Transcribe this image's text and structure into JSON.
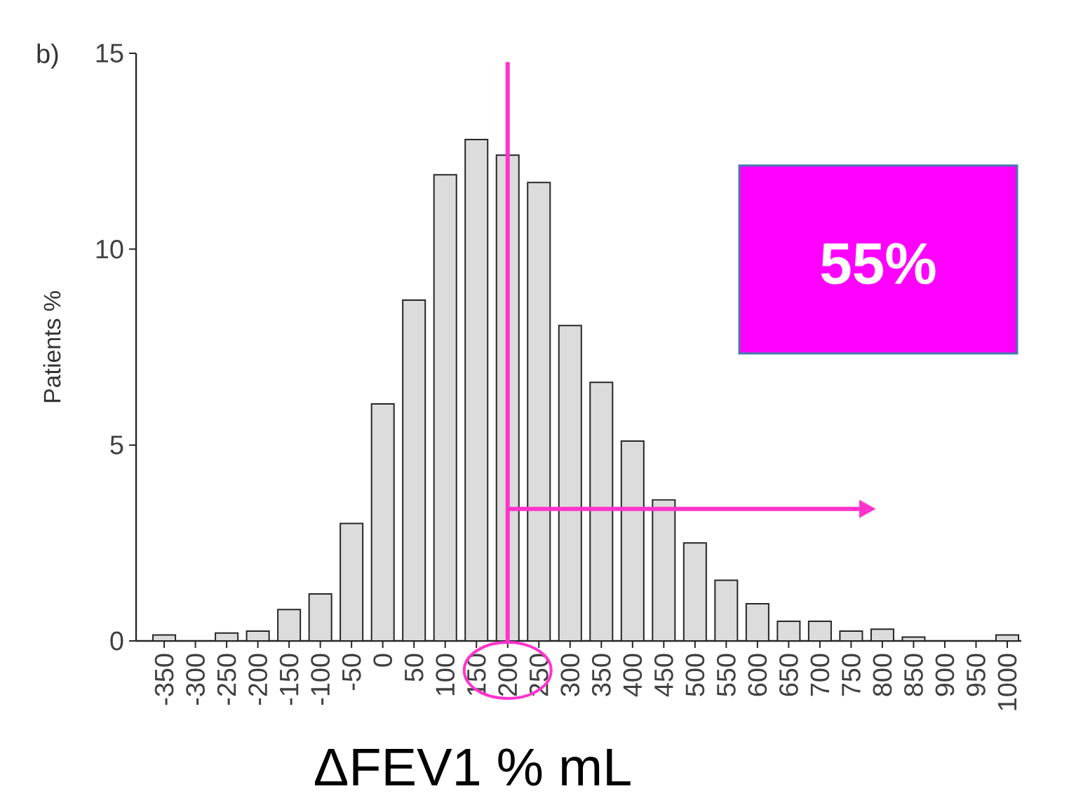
{
  "chart_data": {
    "type": "bar",
    "xlabel": "ΔFEV1 % mL",
    "ylabel": "Patients %",
    "x": [
      -350,
      -300,
      -250,
      -200,
      -150,
      -100,
      -50,
      0,
      50,
      100,
      150,
      200,
      250,
      300,
      350,
      400,
      450,
      500,
      550,
      600,
      650,
      700,
      750,
      800,
      850,
      900,
      950,
      1000
    ],
    "values": [
      0.15,
      0,
      0.2,
      0.25,
      0.8,
      1.2,
      3.0,
      6.05,
      8.7,
      11.9,
      12.8,
      12.4,
      11.7,
      8.05,
      6.6,
      5.1,
      3.6,
      2.5,
      1.55,
      0.95,
      0.5,
      0.5,
      0.25,
      0.3,
      0.1,
      0,
      0,
      0.15
    ],
    "color": "#dcdcdc",
    "xlim": [
      -395,
      1022.5
    ],
    "xticks": [
      -350,
      -300,
      -250,
      -200,
      -150,
      -100,
      -50,
      0,
      50,
      100,
      150,
      200,
      250,
      300,
      350,
      400,
      450,
      500,
      550,
      600,
      650,
      700,
      750,
      800,
      850,
      900,
      950,
      1000
    ],
    "ylim": [
      0,
      15
    ],
    "yticks": [
      0,
      5,
      10,
      15
    ],
    "ref_lines": [
      {
        "axis": "x",
        "value": 200,
        "color": "#ff33cc"
      }
    ],
    "annotations": [
      "b)",
      "55%"
    ]
  }
}
